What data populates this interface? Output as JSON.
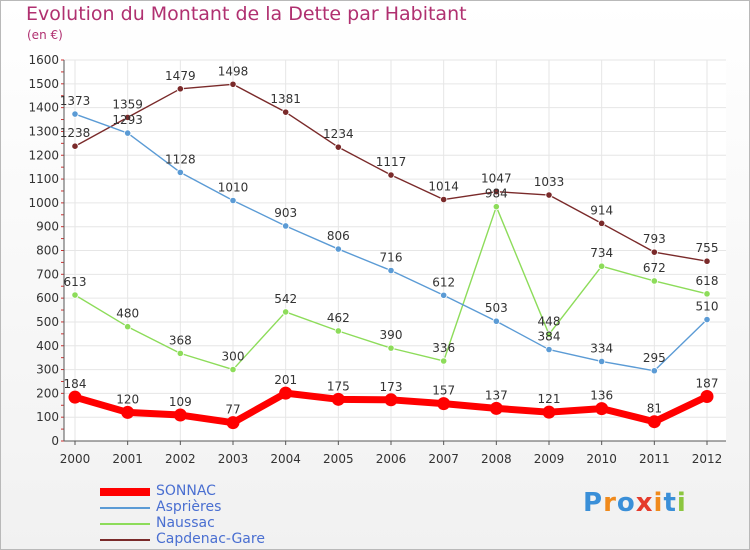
{
  "chart_data": {
    "type": "line",
    "title": "Evolution du Montant de la Dette par Habitant",
    "subtitle": "(en €)",
    "categories": [
      "2000",
      "2001",
      "2002",
      "2003",
      "2004",
      "2005",
      "2006",
      "2007",
      "2008",
      "2009",
      "2010",
      "2011",
      "2012"
    ],
    "ylim": [
      0,
      1600
    ],
    "yticks": [
      "0",
      "100",
      "200",
      "300",
      "400",
      "500",
      "600",
      "700",
      "800",
      "900",
      "1000",
      "1100",
      "1200",
      "1300",
      "1400",
      "1500",
      "1600"
    ],
    "grid": true,
    "legend_position": "bottom-left",
    "series": [
      {
        "name": "SONNAC",
        "color": "#ff0000",
        "values": [
          184,
          120,
          109,
          77,
          201,
          175,
          173,
          157,
          137,
          121,
          136,
          81,
          187
        ]
      },
      {
        "name": "Asprières",
        "color": "#5b9bd5",
        "values": [
          1373,
          1293,
          1128,
          1010,
          903,
          806,
          716,
          612,
          503,
          384,
          334,
          295,
          510
        ]
      },
      {
        "name": "Naussac",
        "color": "#8ddc5a",
        "values": [
          613,
          480,
          368,
          300,
          542,
          462,
          390,
          336,
          984,
          448,
          734,
          672,
          618
        ]
      },
      {
        "name": "Capdenac-Gare",
        "color": "#7a2a2a",
        "values": [
          1238,
          1359,
          1479,
          1498,
          1381,
          1234,
          1117,
          1014,
          1047,
          1033,
          914,
          793,
          755
        ]
      }
    ]
  },
  "logo": {
    "letters": [
      "P",
      "r",
      "o",
      "x",
      "i",
      "t",
      "i"
    ],
    "colors": [
      "#3a8fd8",
      "#f08a1c",
      "#3a8fd8",
      "#e53b2c",
      "#f08a1c",
      "#3a8fd8",
      "#8cc63f"
    ]
  }
}
